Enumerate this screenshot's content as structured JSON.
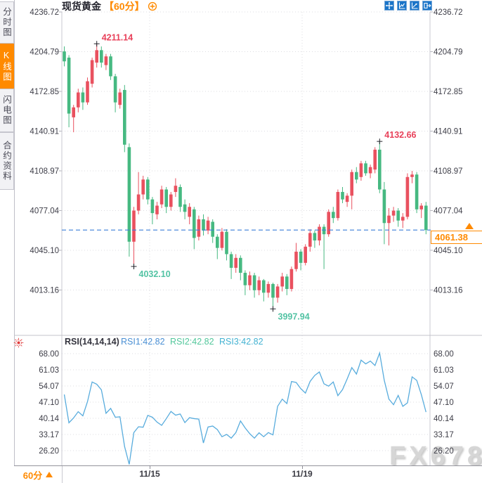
{
  "header": {
    "instrument": "现货黄金",
    "period": "【60分】"
  },
  "sidebar": {
    "items": [
      {
        "label": "分时图",
        "active": false
      },
      {
        "label": "K线图",
        "active": true
      },
      {
        "label": "闪电图",
        "active": false
      },
      {
        "label": "合约资料",
        "active": false
      }
    ]
  },
  "toolbar": {
    "icons": [
      "crosshair",
      "axes-chart",
      "trend-chart",
      "detach-window"
    ]
  },
  "rsi_header": {
    "name": "RSI(14,14,14)",
    "rsi1": "RSI1:42.82",
    "rsi2": "RSI2:42.82",
    "rsi3": "RSI3:42.82"
  },
  "bottom_bar": {
    "period_label": "60分"
  },
  "current_price": "4061.38",
  "watermark": "FX678",
  "colors": {
    "up": "#e9515f",
    "down": "#46b981",
    "up_text": "#e8415a",
    "down_text": "#53c3a4",
    "accent_orange": "#ff8a00",
    "toolbar_blue": "#1a74c8",
    "rsi_line": "#58acdd",
    "dashed_line": "#3b7fd8"
  },
  "chart_data": {
    "type": "candlestick",
    "title": "现货黄金 60分 K线图 + RSI",
    "main": {
      "y_ticks": [
        "4236.72",
        "4204.79",
        "4172.85",
        "4140.91",
        "4108.97",
        "4077.04",
        "4045.10",
        "4013.16"
      ],
      "last_price": 4061.38,
      "annotations": [
        {
          "text": "4211.14",
          "i": 7,
          "price": 4211.14,
          "kind": "high"
        },
        {
          "text": "4132.66",
          "i": 68,
          "price": 4132.66,
          "kind": "high"
        },
        {
          "text": "4032.10",
          "i": 15,
          "price": 4032.1,
          "kind": "low"
        },
        {
          "text": "3997.94",
          "i": 45,
          "price": 3997.94,
          "kind": "low"
        }
      ],
      "candles_ohlc": [
        [
          4205,
          4209,
          4193,
          4197
        ],
        [
          4200,
          4202,
          4144,
          4155
        ],
        [
          4152,
          4162,
          4140,
          4160
        ],
        [
          4160,
          4175,
          4156,
          4172
        ],
        [
          4172,
          4176,
          4158,
          4164
        ],
        [
          4164,
          4184,
          4162,
          4181
        ],
        [
          4179,
          4200,
          4176,
          4198
        ],
        [
          4196,
          4211.14,
          4192,
          4206
        ],
        [
          4206,
          4209,
          4192,
          4196
        ],
        [
          4194,
          4203,
          4190,
          4201
        ],
        [
          4201,
          4203,
          4182,
          4185
        ],
        [
          4185,
          4187,
          4156,
          4164
        ],
        [
          4162,
          4175,
          4159,
          4172
        ],
        [
          4174,
          4178,
          4124,
          4130
        ],
        [
          4128,
          4131,
          4040,
          4052
        ],
        [
          4052,
          4080,
          4032.1,
          4077
        ],
        [
          4077,
          4108,
          4074,
          4090
        ],
        [
          4090,
          4105,
          4086,
          4102
        ],
        [
          4102,
          4104,
          4082,
          4086
        ],
        [
          4086,
          4088,
          4066,
          4075
        ],
        [
          4074,
          4084,
          4070,
          4081
        ],
        [
          4082,
          4097,
          4079,
          4094
        ],
        [
          4094,
          4096,
          4075,
          4080
        ],
        [
          4080,
          4092,
          4077,
          4090
        ],
        [
          4092,
          4103,
          4088,
          4097
        ],
        [
          4096,
          4098,
          4076,
          4080
        ],
        [
          4082,
          4086,
          4070,
          4076
        ],
        [
          4072,
          4083,
          4066,
          4080
        ],
        [
          4078,
          4080,
          4046,
          4055
        ],
        [
          4056,
          4073,
          4053,
          4070
        ],
        [
          4070,
          4074,
          4057,
          4061
        ],
        [
          4061,
          4072,
          4058,
          4069
        ],
        [
          4068,
          4070,
          4051,
          4056
        ],
        [
          4056,
          4058,
          4038,
          4047
        ],
        [
          4047,
          4063,
          4045,
          4060
        ],
        [
          4060,
          4062,
          4037,
          4042
        ],
        [
          4042,
          4044,
          4022,
          4031
        ],
        [
          4031,
          4042,
          4027,
          4039
        ],
        [
          4039,
          4041,
          4021,
          4027
        ],
        [
          4027,
          4029,
          4009,
          4017
        ],
        [
          4017,
          4028,
          4013,
          4025
        ],
        [
          4025,
          4027,
          4007,
          4013
        ],
        [
          4013,
          4024,
          4009,
          4021
        ],
        [
          4021,
          4022,
          4004,
          4011
        ],
        [
          4011,
          4020,
          4007,
          4018
        ],
        [
          4018,
          4019,
          3997.94,
          4007
        ],
        [
          4007,
          4018,
          4003,
          4016
        ],
        [
          4016,
          4027,
          4012,
          4024
        ],
        [
          4024,
          4026,
          4009,
          4014
        ],
        [
          4014,
          4032,
          4012,
          4030
        ],
        [
          4030,
          4051,
          4028,
          4044
        ],
        [
          4044,
          4046,
          4029,
          4035
        ],
        [
          4035,
          4050,
          4033,
          4048
        ],
        [
          4048,
          4062,
          4044,
          4059
        ],
        [
          4059,
          4061,
          4047,
          4053
        ],
        [
          4053,
          4066,
          4049,
          4064
        ],
        [
          4064,
          4066,
          4030,
          4058
        ],
        [
          4058,
          4078,
          4056,
          4076
        ],
        [
          4076,
          4080,
          4067,
          4071
        ],
        [
          4071,
          4094,
          4069,
          4092
        ],
        [
          4092,
          4096,
          4083,
          4086
        ],
        [
          4084,
          4091,
          4080,
          4089
        ],
        [
          4089,
          4110,
          4078,
          4108
        ],
        [
          4108,
          4112,
          4099,
          4102
        ],
        [
          4104,
          4117,
          4101,
          4115
        ],
        [
          4115,
          4117,
          4105,
          4107
        ],
        [
          4107,
          4114,
          4103,
          4112
        ],
        [
          4110,
          4128,
          4107,
          4126
        ],
        [
          4126,
          4132.66,
          4091,
          4094
        ],
        [
          4094,
          4100,
          4050,
          4067
        ],
        [
          4067,
          4079,
          4049,
          4073
        ],
        [
          4073,
          4080,
          4068,
          4077
        ],
        [
          4077,
          4079,
          4064,
          4069
        ],
        [
          4069,
          4075,
          4063,
          4072
        ],
        [
          4072,
          4107,
          4070,
          4104
        ],
        [
          4104,
          4109,
          4099,
          4106
        ],
        [
          4106,
          4108,
          4075,
          4078
        ],
        [
          4078,
          4083,
          4071,
          4081
        ],
        [
          4081,
          4084,
          4058,
          4061.38
        ]
      ]
    },
    "rsi": {
      "y_ticks": [
        "68.00",
        "61.03",
        "54.07",
        "47.10",
        "40.14",
        "33.17",
        "26.20"
      ],
      "values": [
        50.4,
        38.2,
        40.3,
        43.0,
        41.2,
        47.3,
        55.8,
        54.8,
        52.4,
        42.3,
        44.4,
        40.6,
        40.8,
        28.0,
        20.3,
        34.0,
        36.5,
        36.3,
        41.4,
        40.6,
        38.5,
        37.1,
        40.0,
        43.1,
        41.5,
        42.0,
        38.3,
        40.4,
        40.0,
        39.8,
        29.5,
        36.4,
        36.8,
        35.3,
        32.2,
        33.2,
        31.6,
        34.0,
        39.0,
        36.0,
        33.5,
        31.6,
        33.9,
        32.2,
        34.0,
        33.0,
        45.3,
        48.4,
        46.5,
        56.0,
        55.6,
        52.9,
        51.0,
        56.0,
        58.6,
        60.1,
        55.0,
        54.0,
        55.8,
        49.9,
        52.5,
        57.1,
        62.0,
        59.2,
        65.2,
        63.6,
        64.8,
        62.9,
        68.3,
        56.5,
        48.4,
        46.0,
        50.0,
        45.3,
        46.8,
        58.0,
        56.5,
        50.3,
        42.82
      ]
    },
    "x_axis": {
      "dates": [
        {
          "label": "11/15",
          "x": 213
        },
        {
          "label": "11/19",
          "x": 430
        }
      ]
    }
  }
}
